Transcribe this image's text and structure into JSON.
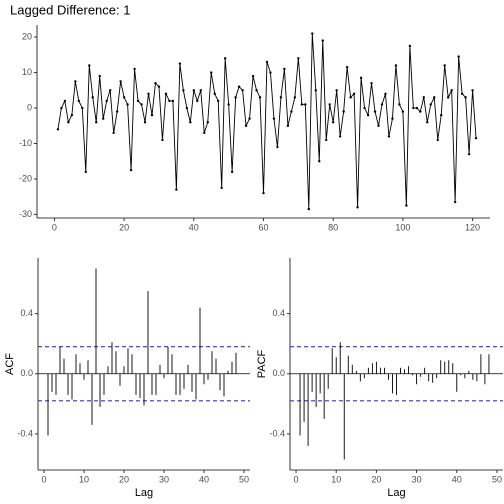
{
  "chart_data": [
    {
      "type": "line",
      "title": "Lagged Difference: 1",
      "color": "#000000",
      "x": [
        1,
        2,
        3,
        4,
        5,
        6,
        7,
        8,
        9,
        10,
        11,
        12,
        13,
        14,
        15,
        16,
        17,
        18,
        19,
        20,
        21,
        22,
        23,
        24,
        25,
        26,
        27,
        28,
        29,
        30,
        31,
        32,
        33,
        34,
        35,
        36,
        37,
        38,
        39,
        40,
        41,
        42,
        43,
        44,
        45,
        46,
        47,
        48,
        49,
        50,
        51,
        52,
        53,
        54,
        55,
        56,
        57,
        58,
        59,
        60,
        61,
        62,
        63,
        64,
        65,
        66,
        67,
        68,
        69,
        70,
        71,
        72,
        73,
        74,
        75,
        76,
        77,
        78,
        79,
        80,
        81,
        82,
        83,
        84,
        85,
        86,
        87,
        88,
        89,
        90,
        91,
        92,
        93,
        94,
        95,
        96,
        97,
        98,
        99,
        100,
        101,
        102,
        103,
        104,
        105,
        106,
        107,
        108,
        109,
        110,
        111,
        112,
        113,
        114,
        115,
        116,
        117,
        118,
        119,
        120,
        121
      ],
      "values": [
        -6,
        0,
        2,
        -4,
        -2,
        7.5,
        2,
        0,
        -18,
        12,
        3,
        -4,
        9,
        -3,
        2,
        5,
        -7,
        -1,
        7.5,
        3,
        1,
        -17.5,
        11,
        2,
        1,
        -4,
        4,
        -2,
        7,
        6,
        -9,
        4,
        2,
        2,
        -23,
        12.5,
        5,
        0,
        -4,
        5,
        2,
        5,
        -7,
        -4,
        10,
        4,
        2,
        -22.5,
        14,
        1,
        -18,
        3,
        6,
        5,
        -5,
        -3,
        9,
        5,
        3,
        -24,
        13,
        10,
        -3,
        -11,
        3,
        11,
        -5,
        -1,
        3,
        14,
        1,
        1,
        -28.5,
        21,
        5,
        -15,
        19,
        -9,
        1,
        -4,
        5,
        -8,
        -1,
        11.5,
        3,
        4,
        -28,
        8.5,
        0,
        -2,
        7,
        -1,
        -5,
        1,
        4,
        -8,
        -3,
        12,
        1,
        -1,
        -27.5,
        17.5,
        0,
        0,
        -1,
        3,
        -4,
        1,
        3,
        -9,
        -2,
        12,
        3,
        5,
        -26.5,
        14.5,
        4,
        3,
        -13,
        5,
        -8.5
      ],
      "xlim": [
        -5,
        125
      ],
      "ylim": [
        -31,
        23.4
      ],
      "xticks": [
        0,
        20,
        40,
        60,
        80,
        100,
        120
      ],
      "yticks": [
        -30,
        -20,
        -10,
        0,
        10,
        20
      ]
    },
    {
      "type": "bar",
      "xlabel": "Lag",
      "ylabel": "ACF",
      "color": "#000000",
      "x": [
        1,
        2,
        3,
        4,
        5,
        6,
        7,
        8,
        9,
        10,
        11,
        12,
        13,
        14,
        15,
        16,
        17,
        18,
        19,
        20,
        21,
        22,
        23,
        24,
        25,
        26,
        27,
        28,
        29,
        30,
        31,
        32,
        33,
        34,
        35,
        36,
        37,
        38,
        39,
        40,
        41,
        42,
        43,
        44,
        45,
        46,
        47,
        48
      ],
      "values": [
        -0.41,
        -0.12,
        -0.14,
        0.18,
        0.1,
        -0.14,
        -0.17,
        0.13,
        0.07,
        -0.04,
        0.09,
        -0.34,
        0.7,
        -0.22,
        -0.14,
        0.05,
        0.21,
        0.15,
        -0.08,
        0.05,
        0.17,
        0.13,
        -0.14,
        -0.16,
        -0.21,
        0.55,
        -0.14,
        -0.14,
        0.06,
        -0.03,
        0.18,
        0.13,
        -0.14,
        -0.14,
        -0.1,
        0.06,
        -0.12,
        -0.17,
        0.44,
        -0.07,
        -0.04,
        0.15,
        0.1,
        -0.11,
        -0.15,
        0.02,
        0.08,
        0.14
      ],
      "hlines": [
        0.18,
        -0.18
      ],
      "hline_color": "#3333cc",
      "xlim": [
        -1.5,
        51.5
      ],
      "ylim": [
        -0.64,
        0.77
      ],
      "xticks": [
        0,
        10,
        20,
        30,
        40,
        50
      ],
      "yticks": [
        -0.4,
        {
          "value": 0,
          "label": "0.0"
        },
        0.4
      ]
    },
    {
      "type": "bar",
      "xlabel": "Lag",
      "ylabel": "PACF",
      "color": "#000000",
      "x": [
        1,
        2,
        3,
        4,
        5,
        6,
        7,
        8,
        9,
        10,
        11,
        12,
        13,
        14,
        15,
        16,
        17,
        18,
        19,
        20,
        21,
        22,
        23,
        24,
        25,
        26,
        27,
        28,
        29,
        30,
        31,
        32,
        33,
        34,
        35,
        36,
        37,
        38,
        39,
        40,
        41,
        42,
        43,
        44,
        45,
        46,
        47,
        48
      ],
      "values": [
        -0.41,
        -0.32,
        -0.48,
        -0.12,
        -0.22,
        -0.13,
        -0.3,
        -0.1,
        0.17,
        0.11,
        0.21,
        -0.57,
        0.12,
        0.06,
        0.02,
        -0.05,
        -0.03,
        0.04,
        0.07,
        0.08,
        0.04,
        0.04,
        -0.04,
        -0.13,
        -0.14,
        0.04,
        0.03,
        0.05,
        -0.01,
        -0.07,
        -0.02,
        0.04,
        -0.05,
        -0.06,
        -0.03,
        0.09,
        0.08,
        0.09,
        0.07,
        -0.12,
        -0.01,
        -0.03,
        0.02,
        -0.04,
        -0.05,
        0.13,
        -0.07,
        0.13
      ],
      "hlines": [
        0.18,
        -0.18
      ],
      "hline_color": "#3333cc",
      "xlim": [
        -1.5,
        51.5
      ],
      "ylim": [
        -0.64,
        0.77
      ],
      "xticks": [
        0,
        10,
        20,
        30,
        40,
        50
      ],
      "yticks": [
        -0.4,
        {
          "value": 0,
          "label": "0.0"
        },
        0.4
      ]
    }
  ]
}
